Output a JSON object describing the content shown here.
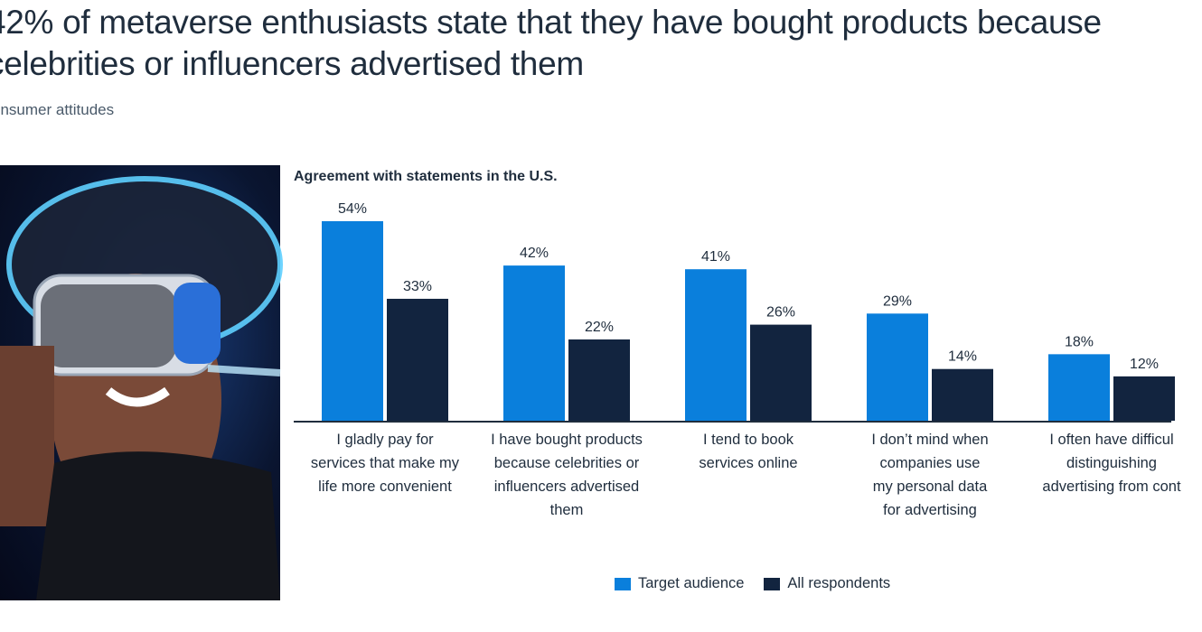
{
  "title_lines": [
    "42% of metaverse enthusiasts state that they have bought products because",
    "celebrities or influencers advertised them"
  ],
  "subtitle": "onsumer attitudes",
  "colors": {
    "target": "#0a7fdc",
    "all": "#12243f",
    "axis": "#1f2d3d"
  },
  "chart_data": {
    "type": "bar",
    "title": "Agreement with statements in the U.S.",
    "categories": [
      [
        "I gladly pay for",
        "services that make my",
        "life more convenient"
      ],
      [
        "I have bought products",
        "because celebrities or",
        "influencers advertised",
        "them"
      ],
      [
        "I tend to book",
        "services online"
      ],
      [
        "I don’t mind when",
        "companies use",
        "my personal data",
        "for advertising"
      ],
      [
        "I often have difficul",
        "distinguishing",
        "advertising from cont"
      ]
    ],
    "series": [
      {
        "name": "Target audience",
        "values": [
          54,
          42,
          41,
          29,
          18
        ],
        "labels": [
          "54%",
          "42%",
          "41%",
          "29%",
          "18%"
        ]
      },
      {
        "name": "All respondents",
        "values": [
          33,
          22,
          26,
          14,
          12
        ],
        "labels": [
          "33%",
          "22%",
          "26%",
          "14%",
          "12%"
        ]
      }
    ],
    "ylim": [
      0,
      54
    ],
    "grid": false,
    "legend": "bottom"
  }
}
